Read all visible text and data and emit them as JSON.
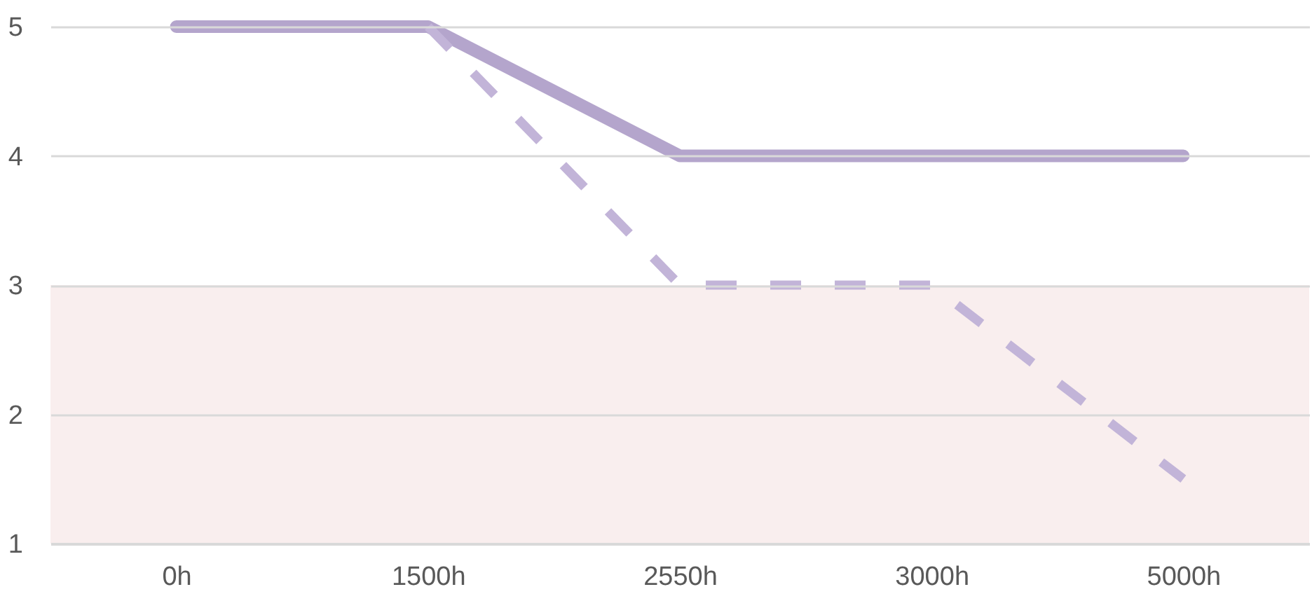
{
  "chart_data": {
    "type": "line",
    "categories": [
      "0h",
      "1500h",
      "2550h",
      "3000h",
      "5000h"
    ],
    "series": [
      {
        "color": "#b4a5cc",
        "values": [
          5,
          5,
          4,
          4,
          4
        ],
        "line_style": "solid"
      },
      {
        "color": "#c2b4d8",
        "values": [
          null,
          5,
          3,
          3,
          1.5
        ],
        "line_style": "dashed"
      }
    ],
    "ylim": [
      1,
      5
    ],
    "yticks": [
      1,
      2,
      3,
      4,
      5
    ],
    "grid": "y",
    "legend": false,
    "marker": "none",
    "bands": [
      {
        "axis": "y",
        "from": 1,
        "to": 3,
        "color": "#f9eeee"
      }
    ]
  }
}
